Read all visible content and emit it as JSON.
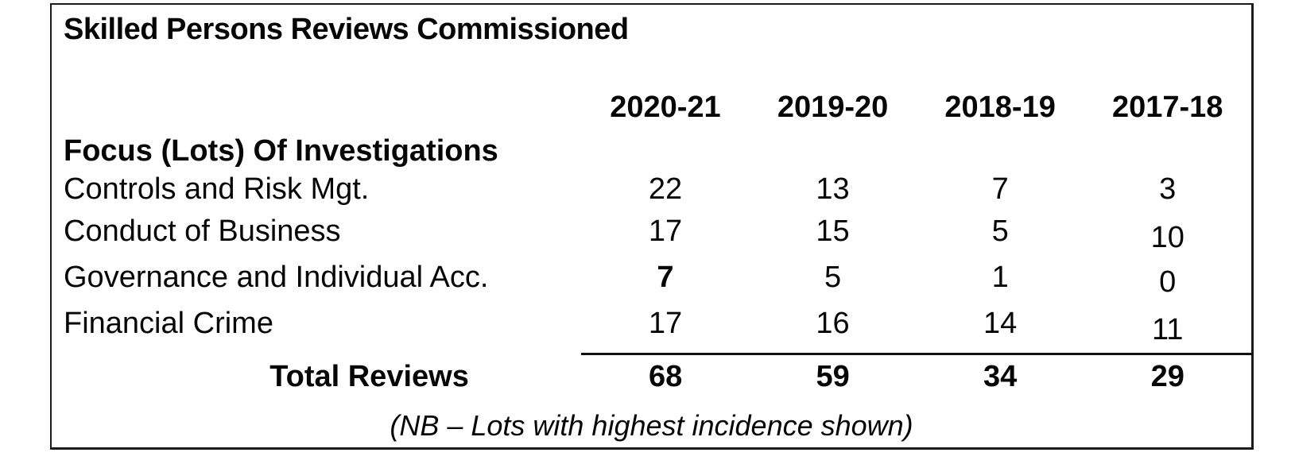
{
  "document": {
    "title": "Skilled Persons Reviews Commissioned",
    "note": "(NB – Lots with highest incidence shown)"
  },
  "table": {
    "section_label": "Focus (Lots) Of Investigations",
    "columns": [
      "2020-21",
      "2019-20",
      "2018-19",
      "2017-18"
    ],
    "rows": [
      {
        "label": "Controls and Risk Mgt.",
        "values": [
          "22",
          "13",
          "7",
          "3"
        ],
        "bold": [
          false,
          false,
          false,
          false
        ]
      },
      {
        "label": "Conduct of Business",
        "values": [
          "17",
          "15",
          "5",
          "10"
        ],
        "bold": [
          false,
          false,
          false,
          false
        ]
      },
      {
        "label": "Governance and Individual Acc.",
        "values": [
          "7",
          "5",
          "1",
          "0"
        ],
        "bold": [
          true,
          false,
          false,
          false
        ]
      },
      {
        "label": "Financial Crime",
        "values": [
          "17",
          "16",
          "14",
          "11"
        ],
        "bold": [
          false,
          false,
          false,
          false
        ]
      }
    ],
    "totals": {
      "label": "Total Reviews",
      "values": [
        "68",
        "59",
        "34",
        "29"
      ]
    }
  },
  "colors": {
    "background": "#ffffff",
    "text": "#060606",
    "border": "#1b1b1b"
  }
}
